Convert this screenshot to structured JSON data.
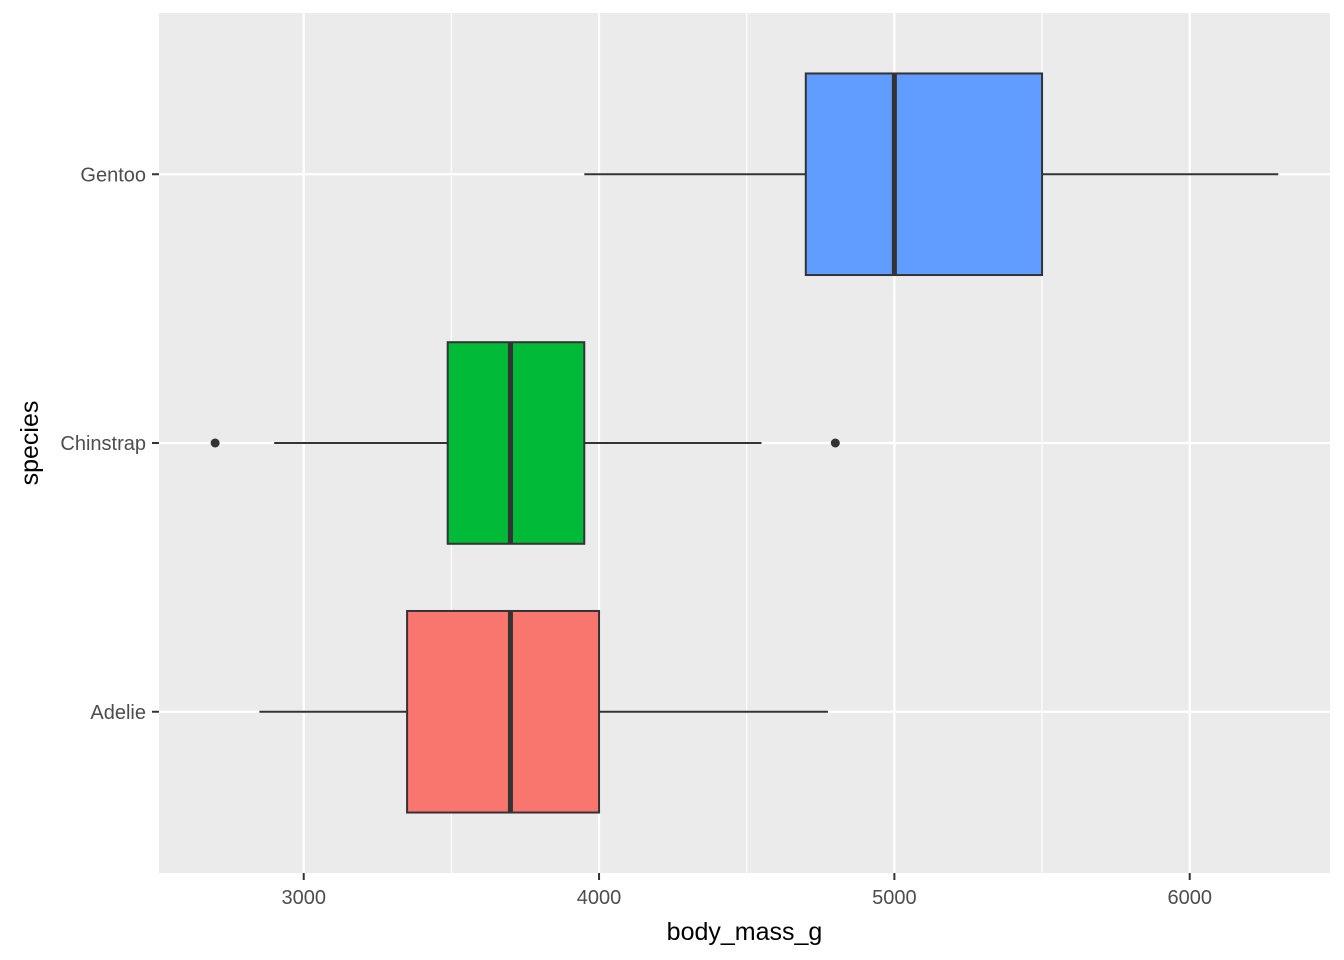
{
  "chart_data": {
    "type": "boxplot",
    "orientation": "horizontal",
    "title": "",
    "xlabel": "body_mass_g",
    "ylabel": "species",
    "xlim": [
      2510,
      6475
    ],
    "x_ticks": [
      3000,
      4000,
      5000,
      6000
    ],
    "x_tick_labels": [
      "3000",
      "4000",
      "5000",
      "6000"
    ],
    "x_minor_ticks": [
      3500,
      4500,
      5500
    ],
    "grid": true,
    "legend": "none",
    "categories": [
      "Adelie",
      "Chinstrap",
      "Gentoo"
    ],
    "series": [
      {
        "category": "Adelie",
        "color": "#F8766D",
        "whisker_low": 2850,
        "q1": 3350,
        "median": 3700,
        "q3": 4000,
        "whisker_high": 4775,
        "outliers": []
      },
      {
        "category": "Chinstrap",
        "color": "#00BA38",
        "whisker_low": 2900,
        "q1": 3487.5,
        "median": 3700,
        "q3": 3950,
        "whisker_high": 4550,
        "outliers": [
          2700,
          4800
        ]
      },
      {
        "category": "Gentoo",
        "color": "#619CFF",
        "whisker_low": 3950,
        "q1": 4700,
        "median": 5000,
        "q3": 5500,
        "whisker_high": 6300,
        "outliers": []
      }
    ],
    "colors": {
      "panel_background": "#EBEBEB",
      "grid": "#FFFFFF",
      "box_outline": "#333333",
      "tick_text": "#4D4D4D",
      "title_text": "#000000"
    }
  }
}
